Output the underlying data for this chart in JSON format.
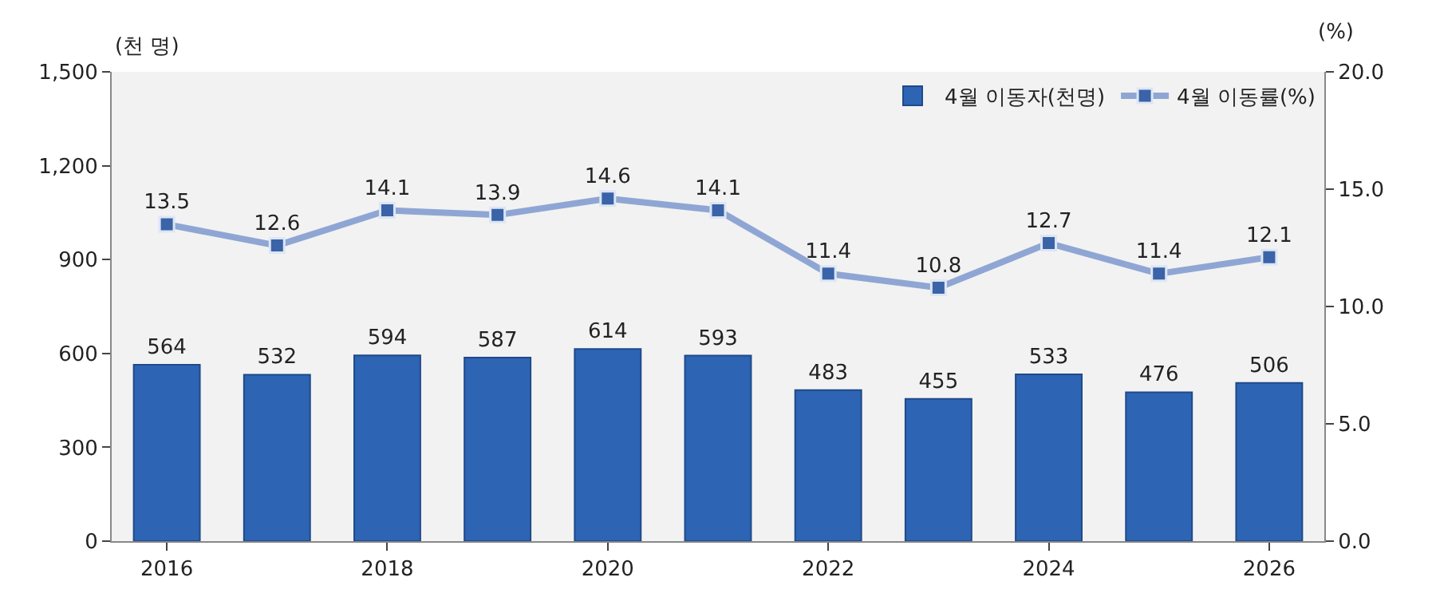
{
  "chart_data": {
    "type": "bar",
    "ylabel": "(천 명)",
    "y2label": "(%)",
    "categories": [
      "2016",
      null,
      "2018",
      null,
      "2020",
      null,
      "2022",
      null,
      "2024",
      null,
      "2026"
    ],
    "series": [
      {
        "name": "4월 이동자(천명)",
        "color": "#2e64b4",
        "values": [
          564,
          532,
          594,
          587,
          614,
          593,
          483,
          455,
          533,
          476,
          506
        ]
      },
      {
        "name": "4월 이동률(%)",
        "type": "line",
        "axis": "y2",
        "color": "#8fa6d4",
        "values": [
          13.5,
          12.6,
          14.1,
          13.9,
          14.6,
          14.1,
          11.4,
          10.8,
          12.7,
          11.4,
          12.1
        ]
      }
    ],
    "ylim": [
      0,
      1500
    ],
    "yticks": [
      0,
      {
        "value": 300,
        "label": "300"
      },
      {
        "value": 600,
        "label": "600"
      },
      {
        "value": 900,
        "label": "900"
      },
      {
        "value": 1200,
        "label": "1,200"
      },
      {
        "value": 1500,
        "label": "1,500"
      }
    ],
    "y2lim": [
      0,
      20
    ],
    "y2ticks": [
      {
        "value": 0,
        "label": "0.0"
      },
      {
        "value": 5,
        "label": "5.0"
      },
      {
        "value": 10,
        "label": "10.0"
      },
      {
        "value": 15,
        "label": "15.0"
      },
      {
        "value": 20,
        "label": "20.0"
      }
    ],
    "data_labels": true,
    "legend": "top right",
    "grid": false,
    "marker": "square"
  }
}
